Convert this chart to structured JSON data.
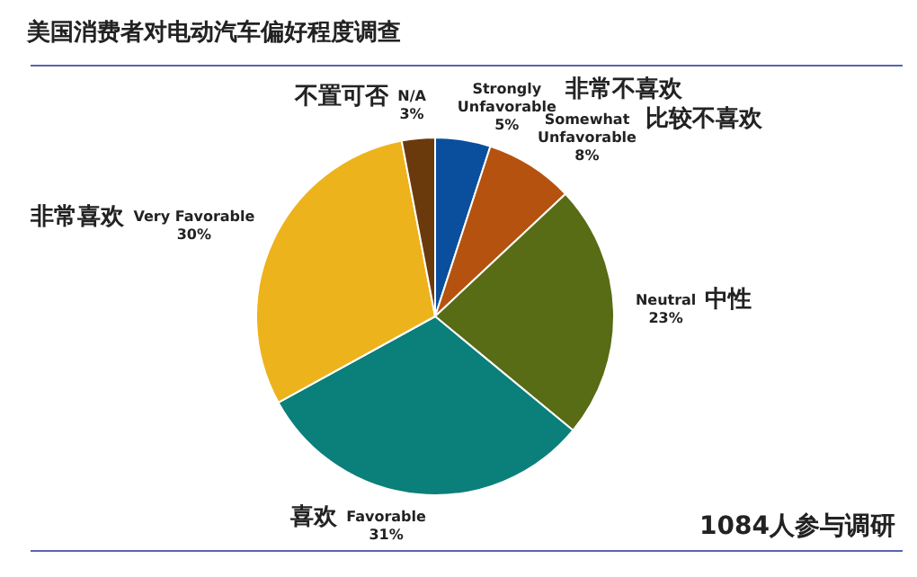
{
  "chart_data": {
    "type": "pie",
    "title": "美国消费者对电动汽车偏好程度调查",
    "categories": [
      "Strongly Unfavorable",
      "Somewhat Unfavorable",
      "Neutral",
      "Favorable",
      "Very Favorable",
      "N/A"
    ],
    "values": [
      5,
      8,
      23,
      31,
      30,
      3
    ],
    "value_labels": [
      "5%",
      "8%",
      "23%",
      "31%",
      "30%",
      "3%"
    ],
    "colors": [
      "#0a4f9e",
      "#b5520f",
      "#586b15",
      "#0b7f7a",
      "#edb31d",
      "#6b3a0c"
    ],
    "annotations": [
      "非常不喜欢",
      "比较不喜欢",
      "中性",
      "喜欢",
      "非常喜欢",
      "不置可否",
      "1084人参与调研"
    ],
    "legend": false
  }
}
